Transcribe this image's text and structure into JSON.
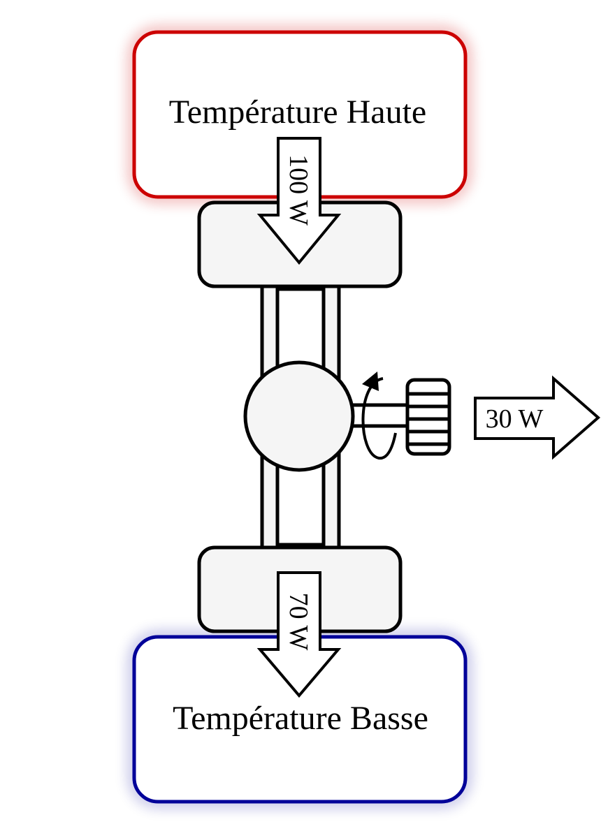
{
  "reservoirs": {
    "hot": {
      "label": "Température Haute",
      "color": "#cc0000"
    },
    "cold": {
      "label": "Température Basse",
      "color": "#000099"
    }
  },
  "flows": {
    "heat_in": {
      "label": "100 W"
    },
    "work_out": {
      "label": "30 W"
    },
    "heat_out": {
      "label": "70 W"
    }
  },
  "engine": {
    "fill": "#f5f5f5",
    "stroke": "#000000"
  }
}
